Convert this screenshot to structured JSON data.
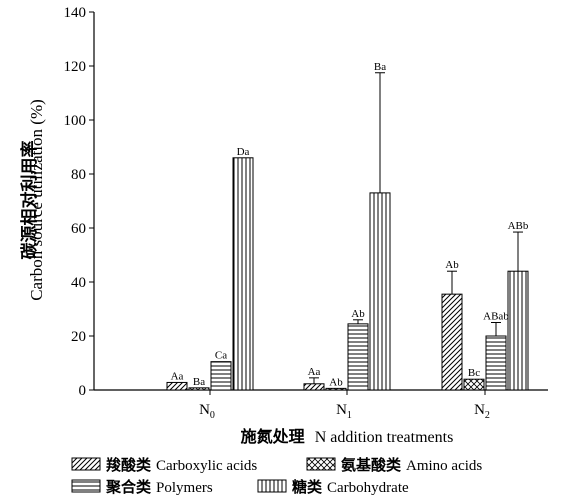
{
  "chart_data": {
    "type": "bar",
    "xlabel_zh": "施氮处理",
    "xlabel_en": "N addition treatments",
    "ylabel_zh": "碳源相对利用率",
    "ylabel_en": "Carbon source utilization (%)",
    "ylim": [
      0,
      140
    ],
    "yticks": [
      0,
      20,
      40,
      60,
      80,
      100,
      120,
      140
    ],
    "categories": [
      {
        "base": "N",
        "sub": "0"
      },
      {
        "base": "N",
        "sub": "1"
      },
      {
        "base": "N",
        "sub": "2"
      }
    ],
    "series": [
      {
        "name_zh": "羧酸类",
        "name_en": "Carboxylic acids",
        "pattern": "diag",
        "values": [
          2.8,
          2.3,
          35.5
        ],
        "errors": [
          0,
          2.2,
          8.5
        ],
        "labels": [
          "Aa",
          "Aa",
          "Ab"
        ]
      },
      {
        "name_zh": "氨基酸类",
        "name_en": "Amino acids",
        "pattern": "cross",
        "values": [
          0.8,
          0.6,
          4.0
        ],
        "errors": [
          0,
          0,
          0
        ],
        "labels": [
          "Ba",
          "Ab",
          "Bc"
        ]
      },
      {
        "name_zh": "聚合类",
        "name_en": "Polymers",
        "pattern": "hlines",
        "values": [
          10.5,
          24.5,
          20.0
        ],
        "errors": [
          0,
          1.5,
          5.0
        ],
        "labels": [
          "Ca",
          "Ab",
          "ABab"
        ]
      },
      {
        "name_zh": "糖类",
        "name_en": "Carbohydrate",
        "pattern": "vlines",
        "values": [
          86.0,
          73.0,
          44.0
        ],
        "errors": [
          0,
          44.5,
          14.5
        ],
        "labels": [
          "Da",
          "Ba",
          "ABb"
        ]
      }
    ],
    "grid": false,
    "legend_position": "bottom"
  }
}
